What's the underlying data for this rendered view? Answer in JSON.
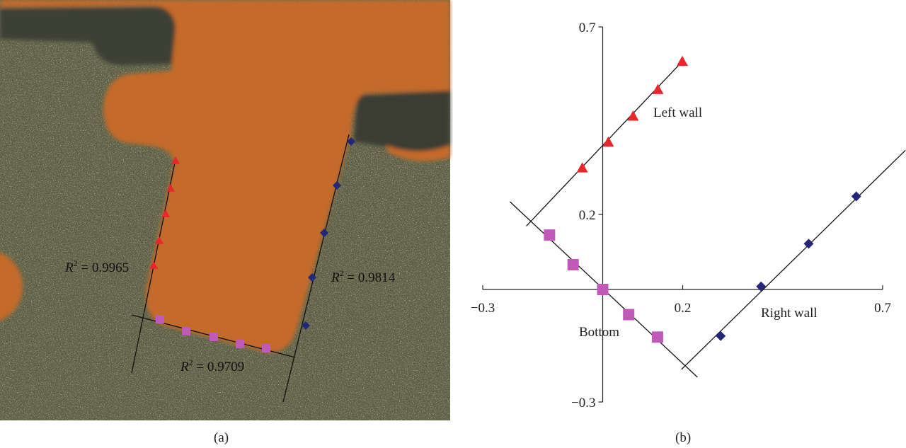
{
  "panel_a": {
    "caption": "(a)",
    "annotations": [
      {
        "id": "left",
        "prefix": "R",
        "sup": "2",
        "value": " = 0.9965"
      },
      {
        "id": "right",
        "prefix": "R",
        "sup": "2",
        "value": " = 0.9814"
      },
      {
        "id": "bottom",
        "prefix": "R",
        "sup": "2",
        "value": " = 0.9709"
      }
    ],
    "colors": {
      "copper": "#c46a2c",
      "substrate": "#5f6147",
      "left_wall": "#e8262b",
      "bottom": "#c05ab8",
      "right_wall": "#24267a"
    }
  },
  "panel_b": {
    "caption": "(b)"
  },
  "chart_data": {
    "type": "scatter",
    "title": "",
    "xlabel": "",
    "ylabel": "",
    "xlim": [
      -0.3,
      0.7
    ],
    "ylim": [
      -0.3,
      0.7
    ],
    "xticks": [
      "−0.3",
      "0.2",
      "0.7"
    ],
    "yticks": [
      "0.7",
      "0.2",
      "−0.3"
    ],
    "xtick_values": [
      -0.3,
      0.2,
      0.7
    ],
    "ytick_values": [
      0.7,
      0.2,
      -0.3
    ],
    "grid": false,
    "legend": "none",
    "series": [
      {
        "name": "Left wall",
        "marker": "triangle",
        "color": "#e8262b",
        "x": [
          -0.051,
          0.014,
          0.076,
          0.138,
          0.199
        ],
        "y": [
          0.324,
          0.393,
          0.462,
          0.533,
          0.608
        ],
        "fit_line": {
          "x": [
            -0.191,
            0.199
          ],
          "y": [
            0.169,
            0.608
          ]
        }
      },
      {
        "name": "Bottom",
        "marker": "square",
        "color": "#c05ab8",
        "x": [
          -0.133,
          -0.074,
          0.0,
          0.065,
          0.137
        ],
        "y": [
          0.145,
          0.066,
          0.0,
          -0.067,
          -0.127
        ],
        "fit_line": {
          "x": [
            -0.232,
            0.237
          ],
          "y": [
            0.234,
            -0.234
          ]
        }
      },
      {
        "name": "Right wall",
        "marker": "diamond",
        "color": "#24267a",
        "x": [
          0.295,
          0.396,
          0.515,
          0.634
        ],
        "y": [
          -0.124,
          0.008,
          0.122,
          0.248
        ],
        "fit_line": {
          "x": [
            0.197,
            0.757
          ],
          "y": [
            -0.213,
            0.371
          ]
        }
      }
    ]
  }
}
